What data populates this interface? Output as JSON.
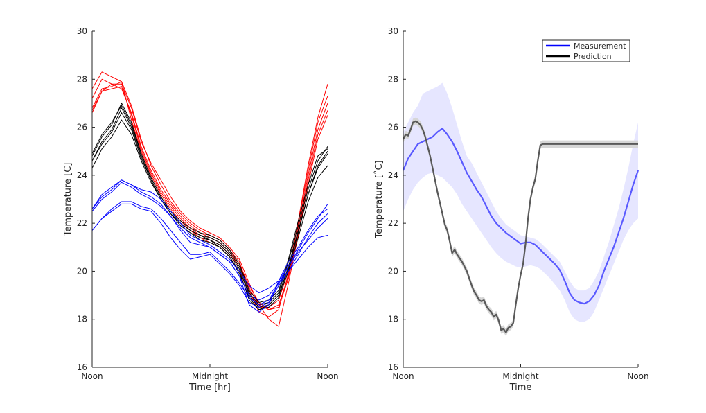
{
  "chart_data": [
    {
      "type": "line",
      "title": "",
      "xlabel": "Time [hr]",
      "ylabel": "Temperature [C]",
      "xlim": [
        0,
        24
      ],
      "ylim": [
        16,
        30
      ],
      "x_ticks": [
        0,
        12,
        24
      ],
      "x_tick_labels": [
        "Noon",
        "Midnight",
        "Noon"
      ],
      "y_ticks": [
        16,
        18,
        20,
        22,
        24,
        26,
        28,
        30
      ],
      "y_tick_labels": [
        "16",
        "18",
        "20",
        "22",
        "24",
        "26",
        "28",
        "30"
      ],
      "grid": false,
      "legend": null,
      "colors": {
        "red": "#ff0000",
        "black": "#000000",
        "blue": "#0000ff"
      },
      "x": [
        0,
        1,
        2,
        3,
        4,
        5,
        6,
        7,
        8,
        9,
        10,
        11,
        12,
        13,
        14,
        15,
        16,
        17,
        18,
        19,
        20,
        21,
        22,
        23,
        24
      ],
      "series": [
        {
          "color": "red",
          "values": [
            26.8,
            27.6,
            27.7,
            27.9,
            26.3,
            25.0,
            24.0,
            23.2,
            22.6,
            22.1,
            21.7,
            21.4,
            21.2,
            21.0,
            20.6,
            20.0,
            19.1,
            18.5,
            18.5,
            18.8,
            20.0,
            22.0,
            24.2,
            26.2,
            27.3
          ]
        },
        {
          "color": "red",
          "values": [
            26.7,
            27.5,
            27.6,
            27.7,
            26.5,
            25.1,
            24.1,
            23.3,
            22.7,
            22.2,
            21.8,
            21.5,
            21.3,
            21.1,
            20.7,
            20.2,
            19.3,
            18.6,
            18.4,
            18.6,
            19.8,
            21.8,
            24.0,
            25.9,
            27.0
          ]
        },
        {
          "color": "red",
          "values": [
            27.2,
            28.0,
            27.8,
            27.6,
            26.6,
            25.2,
            24.2,
            23.4,
            22.8,
            22.3,
            21.9,
            21.6,
            21.4,
            21.2,
            20.8,
            20.3,
            19.4,
            18.7,
            18.4,
            18.5,
            19.7,
            21.6,
            23.8,
            25.7,
            26.7
          ]
        },
        {
          "color": "red",
          "values": [
            27.6,
            28.3,
            28.1,
            27.9,
            26.9,
            25.5,
            24.4,
            23.6,
            22.9,
            22.4,
            22.0,
            21.7,
            21.5,
            21.3,
            20.9,
            20.4,
            19.2,
            18.3,
            18.1,
            18.4,
            19.9,
            22.1,
            24.4,
            26.4,
            27.8
          ]
        },
        {
          "color": "red",
          "values": [
            26.6,
            27.5,
            27.8,
            27.8,
            26.8,
            25.4,
            24.5,
            23.8,
            23.1,
            22.5,
            22.1,
            21.8,
            21.6,
            21.4,
            21.0,
            20.5,
            19.5,
            18.6,
            18.0,
            17.7,
            19.5,
            21.5,
            23.6,
            25.5,
            26.5
          ]
        },
        {
          "color": "black",
          "values": [
            24.8,
            25.6,
            26.1,
            27.0,
            26.2,
            24.9,
            23.9,
            23.1,
            22.5,
            22.0,
            21.7,
            21.5,
            21.4,
            21.2,
            20.8,
            20.2,
            19.1,
            18.6,
            18.7,
            19.1,
            20.4,
            21.9,
            23.4,
            24.6,
            25.2
          ]
        },
        {
          "color": "black",
          "values": [
            24.6,
            25.4,
            25.9,
            26.8,
            26.0,
            24.8,
            23.8,
            23.0,
            22.4,
            21.9,
            21.6,
            21.4,
            21.3,
            21.1,
            20.7,
            20.1,
            19.0,
            18.5,
            18.6,
            19.0,
            20.2,
            21.7,
            23.2,
            24.4,
            25.0
          ]
        },
        {
          "color": "black",
          "values": [
            24.3,
            25.1,
            25.6,
            26.3,
            25.7,
            24.6,
            23.7,
            23.0,
            22.4,
            22.0,
            21.7,
            21.5,
            21.3,
            21.0,
            20.6,
            19.9,
            18.9,
            18.4,
            18.5,
            18.9,
            20.0,
            21.4,
            22.9,
            23.9,
            24.4
          ]
        },
        {
          "color": "black",
          "values": [
            24.9,
            25.7,
            26.2,
            26.9,
            26.1,
            24.9,
            23.9,
            23.1,
            22.5,
            22.1,
            21.8,
            21.6,
            21.5,
            21.3,
            20.9,
            20.3,
            19.2,
            18.7,
            18.8,
            19.2,
            20.5,
            22.1,
            23.6,
            24.8,
            25.1
          ]
        },
        {
          "color": "black",
          "values": [
            24.6,
            25.3,
            25.8,
            26.6,
            25.9,
            24.7,
            23.8,
            23.0,
            22.4,
            21.9,
            21.6,
            21.3,
            21.2,
            21.0,
            20.6,
            20.0,
            18.8,
            18.4,
            18.6,
            19.0,
            20.1,
            21.6,
            23.2,
            24.3,
            24.9
          ]
        },
        {
          "color": "blue",
          "values": [
            22.6,
            23.1,
            23.4,
            23.8,
            23.6,
            23.4,
            23.3,
            23.0,
            22.5,
            22.0,
            21.5,
            21.3,
            21.1,
            20.8,
            20.5,
            20.0,
            19.4,
            19.1,
            19.3,
            19.6,
            20.2,
            20.9,
            21.6,
            22.2,
            22.8
          ]
        },
        {
          "color": "blue",
          "values": [
            22.5,
            23.0,
            23.3,
            23.7,
            23.5,
            23.2,
            23.0,
            22.7,
            22.3,
            21.8,
            21.4,
            21.2,
            21.0,
            20.7,
            20.4,
            19.8,
            19.0,
            18.8,
            19.0,
            19.5,
            20.0,
            20.7,
            21.4,
            22.0,
            22.4
          ]
        },
        {
          "color": "blue",
          "values": [
            21.7,
            22.2,
            22.5,
            22.8,
            22.8,
            22.6,
            22.5,
            22.0,
            21.4,
            20.9,
            20.5,
            20.6,
            20.7,
            20.3,
            19.9,
            19.4,
            18.7,
            18.5,
            18.7,
            19.4,
            20.0,
            20.5,
            21.0,
            21.4,
            21.5
          ]
        },
        {
          "color": "blue",
          "values": [
            21.7,
            22.2,
            22.6,
            22.9,
            22.9,
            22.7,
            22.6,
            22.2,
            21.7,
            21.2,
            20.7,
            20.7,
            20.8,
            20.4,
            20.0,
            19.5,
            18.9,
            18.6,
            18.8,
            19.5,
            20.2,
            20.8,
            21.3,
            21.8,
            22.2
          ]
        },
        {
          "color": "blue",
          "values": [
            22.6,
            23.2,
            23.5,
            23.8,
            23.6,
            23.3,
            23.1,
            22.8,
            22.3,
            21.7,
            21.2,
            21.1,
            21.0,
            20.7,
            20.4,
            19.8,
            18.6,
            18.3,
            18.6,
            19.6,
            20.4,
            21.0,
            21.7,
            22.3,
            22.6
          ]
        }
      ]
    },
    {
      "type": "line",
      "title": "",
      "xlabel": "Time",
      "ylabel": "Temperature [˚C]",
      "xlim": [
        0,
        24
      ],
      "ylim": [
        16,
        30
      ],
      "x_ticks": [
        0,
        12,
        24
      ],
      "x_tick_labels": [
        "Noon",
        "Midnight",
        "Noon"
      ],
      "y_ticks": [
        16,
        18,
        20,
        22,
        24,
        26,
        28,
        30
      ],
      "y_tick_labels": [
        "16",
        "18",
        "20",
        "22",
        "24",
        "26",
        "28",
        "30"
      ],
      "grid": false,
      "legend": {
        "placement": "top-right",
        "entries": [
          "Measurement",
          "Prediction"
        ]
      },
      "series": [
        {
          "name": "Measurement",
          "color": "#5a5aff",
          "band_color": "#e6e6ff",
          "x": [
            0,
            0.5,
            1,
            1.5,
            2,
            2.5,
            3,
            3.5,
            4,
            4.5,
            5,
            5.5,
            6,
            6.5,
            7,
            7.5,
            8,
            8.5,
            9,
            9.5,
            10,
            10.5,
            11,
            11.5,
            12,
            12.5,
            13,
            13.5,
            14,
            14.5,
            15,
            15.5,
            16,
            16.5,
            17,
            17.5,
            18,
            18.5,
            19,
            19.5,
            20,
            20.5,
            21,
            21.5,
            22,
            22.5,
            23,
            23.5,
            24
          ],
          "values": [
            24.2,
            24.7,
            25.0,
            25.3,
            25.4,
            25.5,
            25.6,
            25.8,
            25.95,
            25.7,
            25.4,
            25.0,
            24.55,
            24.1,
            23.75,
            23.4,
            23.1,
            22.7,
            22.3,
            22.0,
            21.8,
            21.6,
            21.45,
            21.3,
            21.15,
            21.2,
            21.2,
            21.1,
            20.9,
            20.7,
            20.5,
            20.3,
            20.05,
            19.6,
            19.1,
            18.8,
            18.7,
            18.65,
            18.75,
            19.0,
            19.4,
            20.0,
            20.5,
            21.0,
            21.6,
            22.2,
            22.9,
            23.6,
            24.2
          ],
          "lower": [
            22.5,
            23.0,
            23.4,
            23.7,
            23.9,
            24.05,
            24.1,
            24.0,
            23.9,
            23.7,
            23.5,
            23.2,
            22.8,
            22.5,
            22.2,
            21.9,
            21.6,
            21.3,
            21.0,
            20.75,
            20.55,
            20.4,
            20.3,
            20.2,
            20.15,
            20.2,
            20.25,
            20.2,
            20.1,
            19.9,
            19.7,
            19.45,
            19.2,
            18.8,
            18.3,
            18.0,
            17.9,
            17.9,
            18.0,
            18.3,
            18.8,
            19.3,
            19.8,
            20.3,
            20.8,
            21.3,
            21.7,
            22.0,
            22.2
          ],
          "upper": [
            25.8,
            26.2,
            26.6,
            26.9,
            27.4,
            27.5,
            27.6,
            27.7,
            27.85,
            27.4,
            26.8,
            26.1,
            25.4,
            24.8,
            24.5,
            24.1,
            23.7,
            23.3,
            22.9,
            22.5,
            22.2,
            21.95,
            21.8,
            21.65,
            21.5,
            21.45,
            21.4,
            21.35,
            21.2,
            21.0,
            20.8,
            20.6,
            20.4,
            20.0,
            19.6,
            19.3,
            19.2,
            19.2,
            19.3,
            19.6,
            20.0,
            20.6,
            21.2,
            21.9,
            22.6,
            23.4,
            24.3,
            25.3,
            26.2
          ]
        },
        {
          "name": "Prediction",
          "color": "#595959",
          "band_color": "#d6d6d6",
          "x": [
            0,
            0.25,
            0.5,
            0.75,
            1,
            1.25,
            1.5,
            1.75,
            2,
            2.25,
            2.5,
            2.75,
            3,
            3.25,
            3.5,
            3.75,
            4,
            4.25,
            4.5,
            4.75,
            5,
            5.25,
            5.5,
            5.75,
            6,
            6.25,
            6.5,
            6.75,
            7,
            7.25,
            7.5,
            7.75,
            8,
            8.25,
            8.5,
            8.75,
            9,
            9.25,
            9.5,
            9.75,
            10,
            10.25,
            10.5,
            10.75,
            11,
            11.25,
            11.5,
            11.75,
            12,
            12.25,
            12.5,
            12.75,
            13,
            13.25,
            13.5,
            13.75,
            14,
            14.25,
            14.5,
            14.75,
            15,
            15.25,
            15.5,
            15.75,
            16,
            16.25,
            16.5,
            16.75,
            17,
            17.25,
            17.5,
            17.75,
            18,
            18.25,
            18.5,
            18.75,
            19,
            19.25,
            19.5,
            19.75,
            20,
            20.25,
            20.5,
            20.75,
            21,
            21.25,
            21.5,
            21.75,
            22,
            22.25,
            22.5,
            22.75,
            23,
            23.25,
            23.5,
            23.75,
            24
          ],
          "values": [
            25.5,
            25.7,
            25.65,
            25.9,
            26.2,
            26.25,
            26.2,
            26.1,
            25.9,
            25.6,
            25.2,
            24.8,
            24.3,
            23.8,
            23.3,
            22.85,
            22.4,
            21.95,
            21.7,
            21.25,
            20.75,
            20.9,
            20.7,
            20.55,
            20.4,
            20.2,
            20.0,
            19.7,
            19.4,
            19.15,
            19.0,
            18.8,
            18.75,
            18.8,
            18.55,
            18.4,
            18.3,
            18.1,
            18.2,
            17.95,
            17.55,
            17.6,
            17.45,
            17.65,
            17.7,
            17.85,
            18.6,
            19.3,
            19.85,
            20.3,
            21.15,
            22.2,
            23.0,
            23.5,
            23.85,
            24.6,
            25.25,
            25.3,
            25.3,
            25.3,
            25.3,
            25.3,
            25.3,
            25.3,
            25.3,
            25.3,
            25.3,
            25.3,
            25.3,
            25.3,
            25.3,
            25.3,
            25.3,
            25.3,
            25.3,
            25.3,
            25.3,
            25.3,
            25.3,
            25.3,
            25.3,
            25.3,
            25.3,
            25.3,
            25.3,
            25.3,
            25.3,
            25.3,
            25.3,
            25.3,
            25.3,
            25.3,
            25.3,
            25.3,
            25.3,
            25.3,
            25.3
          ],
          "band_halfwidth": 0.15
        }
      ]
    }
  ]
}
